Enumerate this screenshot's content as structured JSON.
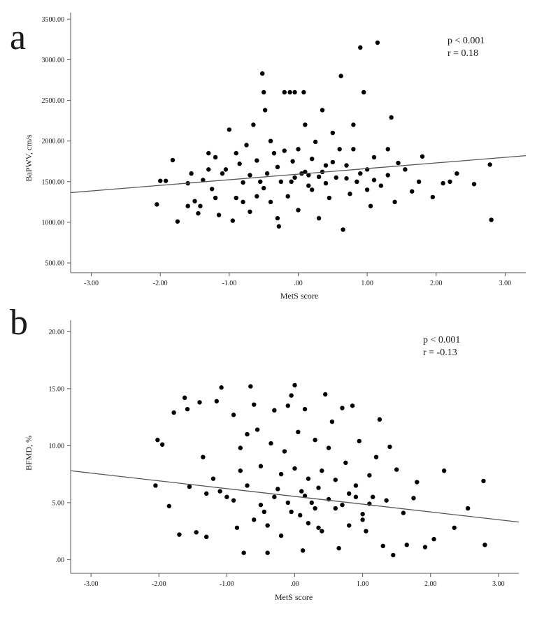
{
  "colors": {
    "background": "#ffffff",
    "axis": "#555555",
    "point": "#000000",
    "fit_line": "#555555",
    "text": "#1a1a1a"
  },
  "chart_data": [
    {
      "type": "scatter",
      "panel_label": "a",
      "title": "",
      "xlabel": "MetS score",
      "ylabel": "BaPWV, cm/s",
      "xlim": [
        -3.3,
        3.3
      ],
      "ylim": [
        380,
        3580
      ],
      "x_ticks": [
        -3,
        -2,
        -1,
        0,
        1,
        2,
        3
      ],
      "x_tick_labels": [
        "-3.00",
        "-2.00",
        "-1.00",
        ".00",
        "1.00",
        "2.00",
        "3.00"
      ],
      "y_ticks": [
        500,
        1000,
        1500,
        2000,
        2500,
        3000,
        3500
      ],
      "y_tick_labels": [
        "500.00",
        "1000.00",
        "1500.00",
        "2000.00",
        "2500.00",
        "3000.00",
        "3500.00"
      ],
      "annotations": [
        "p < 0.001",
        "r = 0.18"
      ],
      "fit_line": {
        "x": [
          -3.3,
          3.3
        ],
        "y": [
          1365,
          1820
        ]
      },
      "grid": false,
      "legend": "none",
      "series": [
        {
          "points": [
            [
              -2.05,
              1220
            ],
            [
              -2.0,
              1510
            ],
            [
              -1.92,
              1510
            ],
            [
              -1.82,
              1765
            ],
            [
              -1.75,
              1010
            ],
            [
              -1.6,
              1480
            ],
            [
              -1.55,
              1600
            ],
            [
              -1.5,
              1260
            ],
            [
              -1.45,
              1110
            ],
            [
              -1.42,
              1200
            ],
            [
              -1.38,
              1520
            ],
            [
              -1.3,
              1850
            ],
            [
              -1.25,
              1410
            ],
            [
              -1.2,
              1300
            ],
            [
              -1.15,
              1090
            ],
            [
              -1.05,
              1650
            ],
            [
              -1.0,
              2140
            ],
            [
              -0.95,
              1020
            ],
            [
              -0.9,
              1300
            ],
            [
              -0.85,
              1720
            ],
            [
              -0.8,
              1490
            ],
            [
              -0.75,
              1950
            ],
            [
              -0.7,
              1130
            ],
            [
              -0.65,
              2200
            ],
            [
              -0.6,
              1320
            ],
            [
              -0.55,
              1500
            ],
            [
              -0.52,
              2830
            ],
            [
              -0.5,
              2600
            ],
            [
              -0.48,
              2380
            ],
            [
              -0.45,
              1600
            ],
            [
              -0.4,
              1250
            ],
            [
              -0.35,
              1850
            ],
            [
              -0.3,
              1050
            ],
            [
              -0.28,
              950
            ],
            [
              -0.25,
              1500
            ],
            [
              -0.2,
              2600
            ],
            [
              -0.15,
              1320
            ],
            [
              -0.12,
              2600
            ],
            [
              -0.08,
              1750
            ],
            [
              -0.05,
              2600
            ],
            [
              0.0,
              1150
            ],
            [
              0.05,
              1600
            ],
            [
              0.08,
              2600
            ],
            [
              0.1,
              2200
            ],
            [
              0.15,
              1450
            ],
            [
              0.2,
              1780
            ],
            [
              0.25,
              1990
            ],
            [
              0.3,
              1050
            ],
            [
              0.35,
              2380
            ],
            [
              0.4,
              1480
            ],
            [
              0.45,
              1300
            ],
            [
              0.5,
              2100
            ],
            [
              0.55,
              1550
            ],
            [
              0.62,
              2800
            ],
            [
              0.65,
              910
            ],
            [
              0.7,
              1700
            ],
            [
              0.75,
              1350
            ],
            [
              0.8,
              2200
            ],
            [
              0.85,
              1500
            ],
            [
              0.9,
              3150
            ],
            [
              0.95,
              2600
            ],
            [
              1.0,
              1650
            ],
            [
              1.05,
              1200
            ],
            [
              1.1,
              1800
            ],
            [
              1.15,
              3210
            ],
            [
              1.2,
              1450
            ],
            [
              1.3,
              1580
            ],
            [
              1.35,
              2290
            ],
            [
              1.4,
              1250
            ],
            [
              1.45,
              1730
            ],
            [
              1.55,
              1650
            ],
            [
              1.65,
              1380
            ],
            [
              1.75,
              1500
            ],
            [
              1.8,
              1810
            ],
            [
              1.95,
              1310
            ],
            [
              2.1,
              1480
            ],
            [
              2.2,
              1500
            ],
            [
              2.3,
              1600
            ],
            [
              2.55,
              1470
            ],
            [
              2.78,
              1710
            ],
            [
              2.8,
              1030
            ],
            [
              -1.1,
              1600
            ],
            [
              -0.9,
              1850
            ],
            [
              -0.7,
              1580
            ],
            [
              -0.5,
              1420
            ],
            [
              -0.3,
              1680
            ],
            [
              -0.1,
              1500
            ],
            [
              0.1,
              1620
            ],
            [
              0.3,
              1560
            ],
            [
              0.5,
              1740
            ],
            [
              0.7,
              1540
            ],
            [
              0.9,
              1600
            ],
            [
              1.1,
              1520
            ],
            [
              -0.6,
              1760
            ],
            [
              -0.2,
              1880
            ],
            [
              0.2,
              1400
            ],
            [
              0.6,
              1900
            ],
            [
              1.0,
              1400
            ],
            [
              1.3,
              1900
            ],
            [
              -1.3,
              1650
            ],
            [
              -0.8,
              1250
            ],
            [
              -0.4,
              2000
            ],
            [
              0.0,
              1900
            ],
            [
              0.4,
              1700
            ],
            [
              0.8,
              1900
            ],
            [
              -1.6,
              1200
            ],
            [
              -1.2,
              1800
            ],
            [
              -0.05,
              1550
            ],
            [
              0.15,
              1580
            ],
            [
              0.35,
              1620
            ]
          ]
        }
      ]
    },
    {
      "type": "scatter",
      "panel_label": "b",
      "title": "",
      "xlabel": "MetS score",
      "ylabel": "BFMD, %",
      "xlim": [
        -3.3,
        3.3
      ],
      "ylim": [
        -1.2,
        21.0
      ],
      "x_ticks": [
        -3,
        -2,
        -1,
        0,
        1,
        2,
        3
      ],
      "x_tick_labels": [
        "-3.00",
        "-2.00",
        "-1.00",
        ".00",
        "1.00",
        "2.00",
        "3.00"
      ],
      "y_ticks": [
        0,
        5,
        10,
        15,
        20
      ],
      "y_tick_labels": [
        ".00",
        "5.00",
        "10.00",
        "15.00",
        "20.00"
      ],
      "annotations": [
        "p < 0.001",
        "r = -0.13"
      ],
      "fit_line": {
        "x": [
          -3.3,
          3.3
        ],
        "y": [
          7.8,
          3.3
        ]
      },
      "grid": false,
      "legend": "none",
      "series": [
        {
          "points": [
            [
              -2.05,
              6.5
            ],
            [
              -2.02,
              10.5
            ],
            [
              -1.95,
              10.1
            ],
            [
              -1.85,
              4.7
            ],
            [
              -1.78,
              12.9
            ],
            [
              -1.7,
              2.2
            ],
            [
              -1.62,
              14.2
            ],
            [
              -1.58,
              13.2
            ],
            [
              -1.55,
              6.4
            ],
            [
              -1.45,
              2.4
            ],
            [
              -1.4,
              13.8
            ],
            [
              -1.35,
              9.0
            ],
            [
              -1.3,
              2.0
            ],
            [
              -1.2,
              7.1
            ],
            [
              -1.15,
              13.9
            ],
            [
              -1.08,
              15.1
            ],
            [
              -1.0,
              5.5
            ],
            [
              -0.9,
              12.7
            ],
            [
              -0.85,
              2.8
            ],
            [
              -0.8,
              9.8
            ],
            [
              -0.75,
              0.6
            ],
            [
              -0.7,
              11.0
            ],
            [
              -0.65,
              15.2
            ],
            [
              -0.6,
              13.6
            ],
            [
              -0.55,
              11.4
            ],
            [
              -0.5,
              8.2
            ],
            [
              -0.45,
              4.2
            ],
            [
              -0.4,
              0.6
            ],
            [
              -0.35,
              10.2
            ],
            [
              -0.3,
              13.1
            ],
            [
              -0.25,
              6.2
            ],
            [
              -0.2,
              2.1
            ],
            [
              -0.15,
              9.5
            ],
            [
              -0.1,
              13.5
            ],
            [
              -0.05,
              14.4
            ],
            [
              0.0,
              15.3
            ],
            [
              0.05,
              11.2
            ],
            [
              0.08,
              3.9
            ],
            [
              0.12,
              0.8
            ],
            [
              0.15,
              13.2
            ],
            [
              0.2,
              7.1
            ],
            [
              0.25,
              5.0
            ],
            [
              0.3,
              10.5
            ],
            [
              0.35,
              2.8
            ],
            [
              0.4,
              7.8
            ],
            [
              0.45,
              14.5
            ],
            [
              0.5,
              9.8
            ],
            [
              0.55,
              12.1
            ],
            [
              0.6,
              4.5
            ],
            [
              0.65,
              1.0
            ],
            [
              0.7,
              13.3
            ],
            [
              0.75,
              8.5
            ],
            [
              0.8,
              3.0
            ],
            [
              0.85,
              13.5
            ],
            [
              0.9,
              6.5
            ],
            [
              0.95,
              10.4
            ],
            [
              1.0,
              4.0
            ],
            [
              1.05,
              2.5
            ],
            [
              1.1,
              7.4
            ],
            [
              1.15,
              5.5
            ],
            [
              1.2,
              9.0
            ],
            [
              1.25,
              12.3
            ],
            [
              1.3,
              1.2
            ],
            [
              1.35,
              5.2
            ],
            [
              1.4,
              9.9
            ],
            [
              1.45,
              0.4
            ],
            [
              1.5,
              7.9
            ],
            [
              1.6,
              4.1
            ],
            [
              1.65,
              1.3
            ],
            [
              1.75,
              5.4
            ],
            [
              1.8,
              6.8
            ],
            [
              1.92,
              1.1
            ],
            [
              2.05,
              1.8
            ],
            [
              2.2,
              7.8
            ],
            [
              2.35,
              2.8
            ],
            [
              2.55,
              4.5
            ],
            [
              2.78,
              6.9
            ],
            [
              2.8,
              1.3
            ],
            [
              -1.1,
              6.0
            ],
            [
              -0.9,
              5.2
            ],
            [
              -0.7,
              6.5
            ],
            [
              -0.5,
              4.8
            ],
            [
              -0.3,
              5.5
            ],
            [
              -0.1,
              5.0
            ],
            [
              0.1,
              6.0
            ],
            [
              0.3,
              4.5
            ],
            [
              0.5,
              5.3
            ],
            [
              0.7,
              4.8
            ],
            [
              0.9,
              5.5
            ],
            [
              1.1,
              4.9
            ],
            [
              -0.6,
              3.5
            ],
            [
              -0.2,
              7.5
            ],
            [
              0.2,
              3.2
            ],
            [
              0.6,
              7.0
            ],
            [
              1.0,
              3.5
            ],
            [
              -1.3,
              5.8
            ],
            [
              -0.8,
              7.8
            ],
            [
              -0.4,
              3.0
            ],
            [
              0.0,
              8.0
            ],
            [
              0.4,
              2.5
            ],
            [
              0.8,
              5.8
            ],
            [
              -0.05,
              4.2
            ],
            [
              0.15,
              5.6
            ],
            [
              0.35,
              6.3
            ]
          ]
        }
      ]
    }
  ]
}
